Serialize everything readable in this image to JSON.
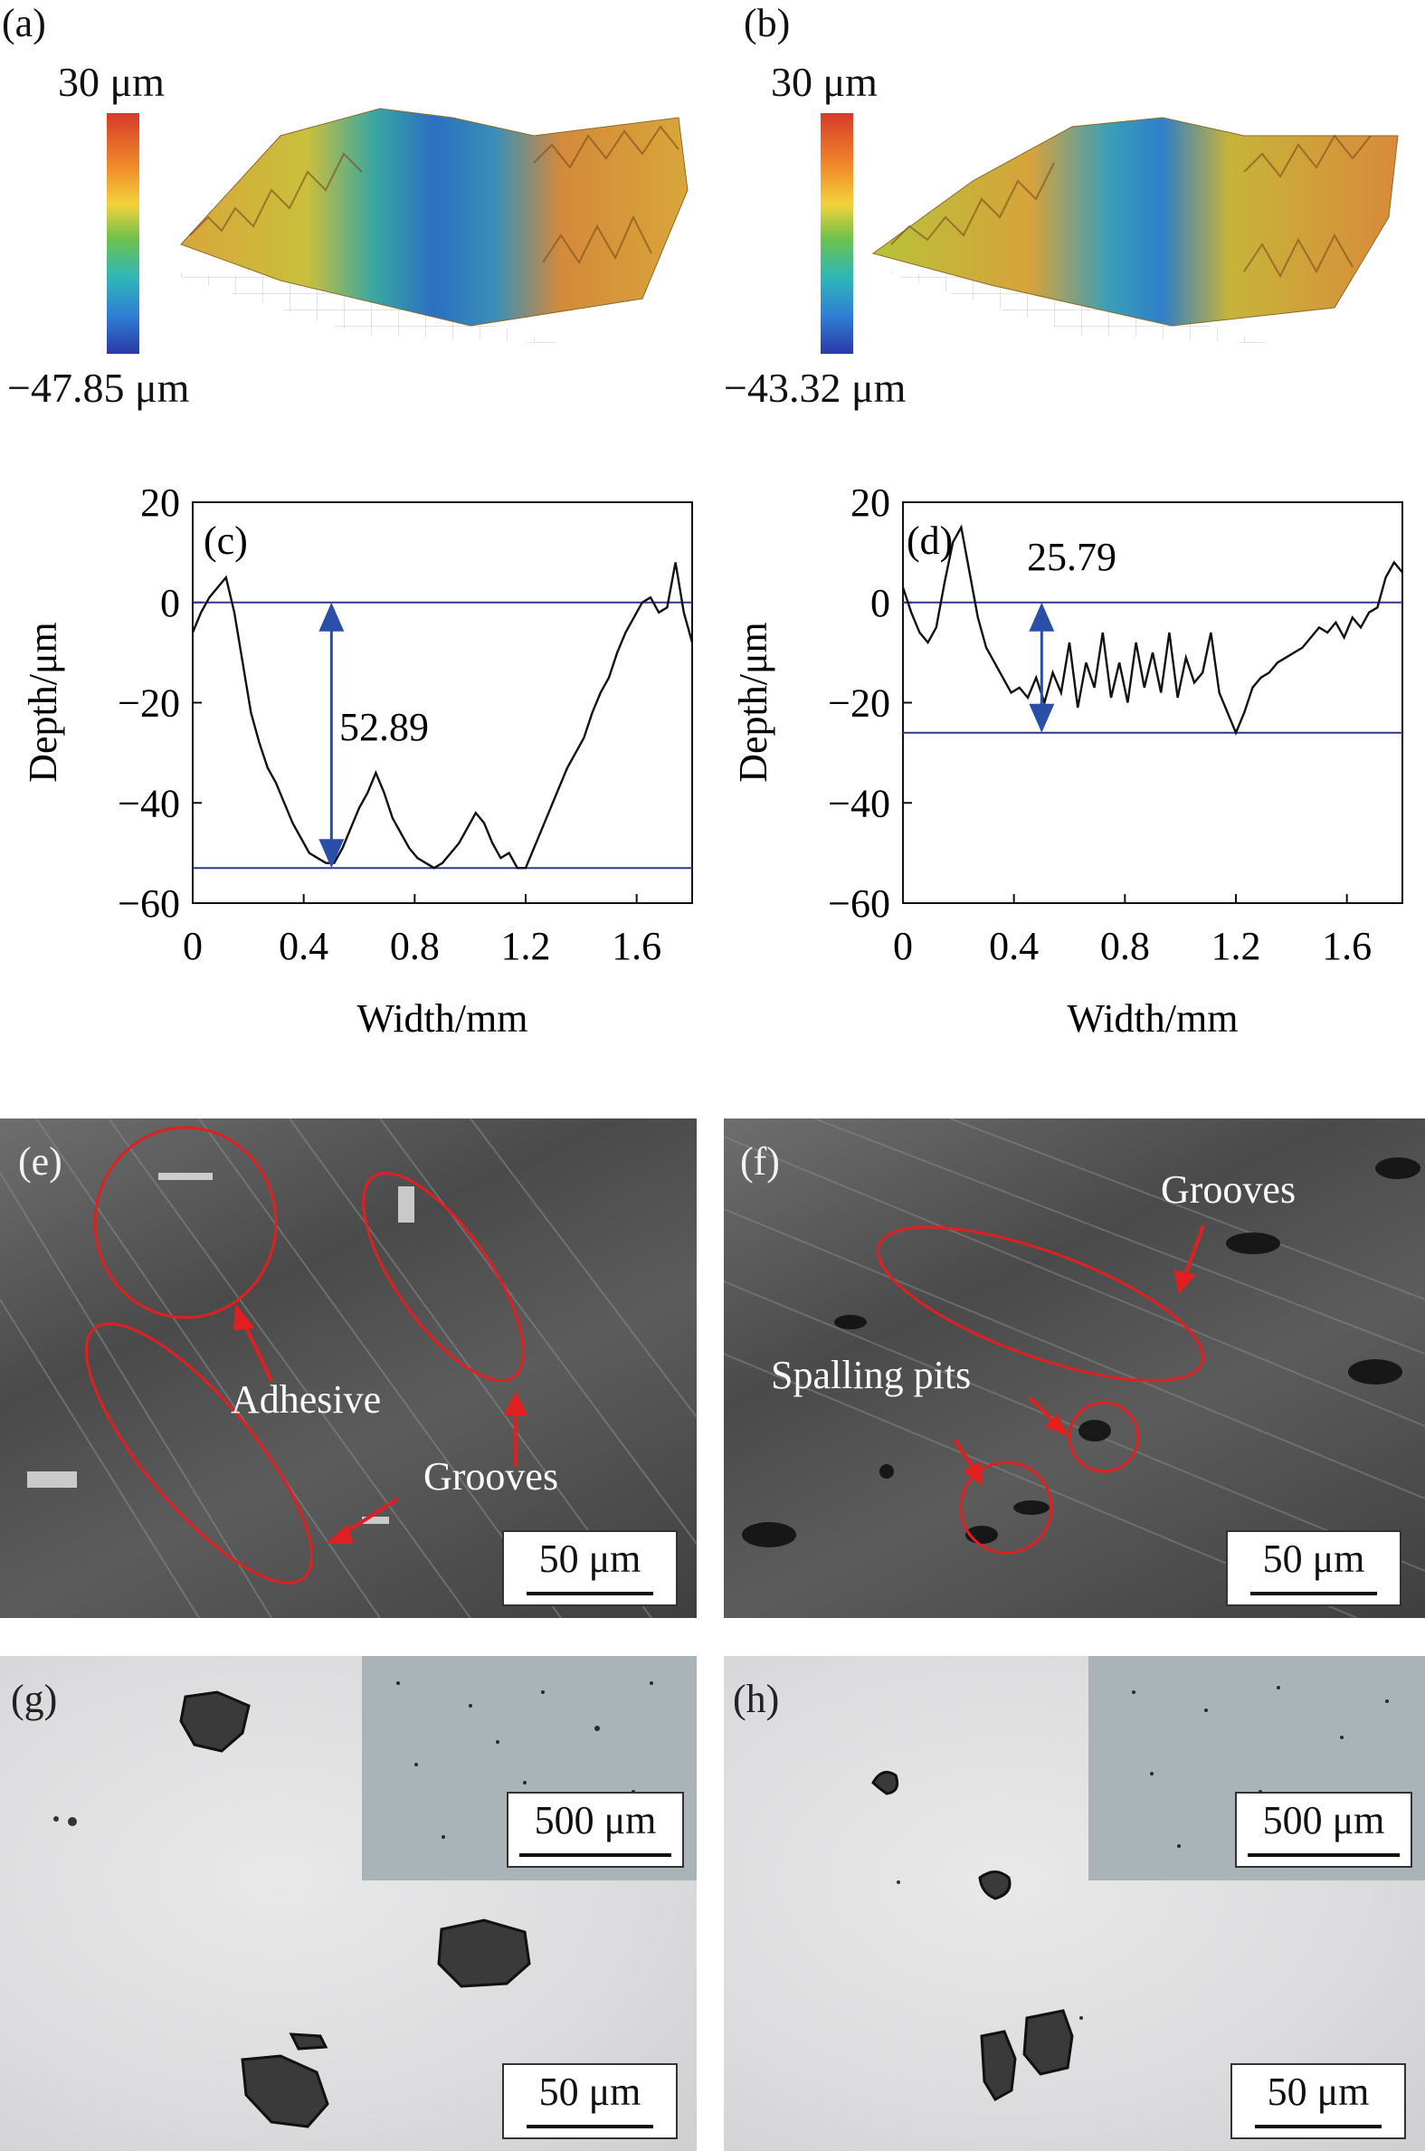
{
  "panels": {
    "a": {
      "label": "(a)",
      "cbar_max": "30 μm",
      "cbar_min": "−47.85 μm"
    },
    "b": {
      "label": "(b)",
      "cbar_max": "30 μm",
      "cbar_min": "−43.32 μm"
    },
    "e": {
      "label": "(e)",
      "annotations": [
        "Adhesive",
        "Grooves"
      ],
      "scale": "50 μm"
    },
    "f": {
      "label": "(f)",
      "annotations": [
        "Grooves",
        "Spalling pits"
      ],
      "scale": "50 μm"
    },
    "g": {
      "label": "(g)",
      "inset_scale": "500 μm",
      "scale": "50 μm"
    },
    "h": {
      "label": "(h)",
      "inset_scale": "500 μm",
      "scale": "50 μm"
    }
  },
  "colors": {
    "profile_line": "#111111",
    "reference_line": "#2b3a8c",
    "arrow": "#2b4fa8",
    "annotation": "#e02020"
  },
  "chart_data": [
    {
      "type": "line",
      "panel_label": "(c)",
      "xlabel": "Width/mm",
      "ylabel": "Depth/μm",
      "xlim": [
        0,
        1.8
      ],
      "ylim": [
        -60,
        20
      ],
      "xticks": [
        "0",
        "0.4",
        "0.8",
        "1.2",
        "1.6"
      ],
      "yticks": [
        "20",
        "0",
        "−20",
        "−40",
        "−60"
      ],
      "reference_lines": [
        0,
        -53
      ],
      "annotation": "52.89",
      "series": [
        {
          "name": "profile",
          "x": [
            0,
            0.03,
            0.06,
            0.09,
            0.12,
            0.15,
            0.18,
            0.21,
            0.24,
            0.27,
            0.3,
            0.33,
            0.36,
            0.39,
            0.42,
            0.45,
            0.48,
            0.51,
            0.54,
            0.57,
            0.6,
            0.63,
            0.66,
            0.69,
            0.72,
            0.75,
            0.78,
            0.81,
            0.84,
            0.87,
            0.9,
            0.93,
            0.96,
            0.99,
            1.02,
            1.05,
            1.08,
            1.11,
            1.14,
            1.17,
            1.2,
            1.23,
            1.26,
            1.29,
            1.32,
            1.35,
            1.38,
            1.41,
            1.44,
            1.47,
            1.5,
            1.53,
            1.56,
            1.59,
            1.62,
            1.65,
            1.68,
            1.71,
            1.74,
            1.77,
            1.8
          ],
          "y": [
            -6,
            -2,
            1,
            3,
            5,
            -2,
            -12,
            -22,
            -28,
            -33,
            -36,
            -40,
            -44,
            -47,
            -50,
            -51,
            -52,
            -52,
            -49,
            -45,
            -41,
            -38,
            -34,
            -38,
            -43,
            -46,
            -49,
            -51,
            -52,
            -53,
            -52,
            -50,
            -48,
            -45,
            -42,
            -44,
            -48,
            -51,
            -50,
            -53,
            -53,
            -49,
            -45,
            -41,
            -37,
            -33,
            -30,
            -27,
            -22,
            -18,
            -15,
            -10,
            -6,
            -3,
            0,
            1,
            -2,
            -1,
            8,
            -2,
            -8
          ]
        }
      ]
    },
    {
      "type": "line",
      "panel_label": "(d)",
      "xlabel": "Width/mm",
      "ylabel": "Depth/μm",
      "xlim": [
        0,
        1.8
      ],
      "ylim": [
        -60,
        20
      ],
      "xticks": [
        "0",
        "0.4",
        "0.8",
        "1.2",
        "1.6"
      ],
      "yticks": [
        "20",
        "0",
        "−20",
        "−40",
        "−60"
      ],
      "reference_lines": [
        0,
        -26
      ],
      "annotation": "25.79",
      "series": [
        {
          "name": "profile",
          "x": [
            0,
            0.03,
            0.06,
            0.09,
            0.12,
            0.15,
            0.18,
            0.21,
            0.24,
            0.27,
            0.3,
            0.33,
            0.36,
            0.39,
            0.42,
            0.45,
            0.48,
            0.51,
            0.54,
            0.57,
            0.6,
            0.63,
            0.66,
            0.69,
            0.72,
            0.75,
            0.78,
            0.81,
            0.84,
            0.87,
            0.9,
            0.93,
            0.96,
            0.99,
            1.02,
            1.05,
            1.08,
            1.11,
            1.14,
            1.17,
            1.2,
            1.23,
            1.26,
            1.29,
            1.32,
            1.35,
            1.38,
            1.41,
            1.44,
            1.47,
            1.5,
            1.53,
            1.56,
            1.59,
            1.62,
            1.65,
            1.68,
            1.71,
            1.74,
            1.77,
            1.8
          ],
          "y": [
            3,
            -2,
            -6,
            -8,
            -5,
            4,
            12,
            15,
            6,
            -3,
            -9,
            -12,
            -15,
            -18,
            -17,
            -19,
            -15,
            -20,
            -14,
            -18,
            -8,
            -21,
            -12,
            -17,
            -6,
            -19,
            -12,
            -20,
            -8,
            -17,
            -10,
            -18,
            -6,
            -19,
            -11,
            -16,
            -14,
            -6,
            -18,
            -22,
            -26,
            -22,
            -17,
            -15,
            -14,
            -12,
            -11,
            -10,
            -9,
            -7,
            -5,
            -6,
            -4,
            -7,
            -3,
            -5,
            -2,
            -1,
            5,
            8,
            6
          ]
        }
      ]
    }
  ]
}
